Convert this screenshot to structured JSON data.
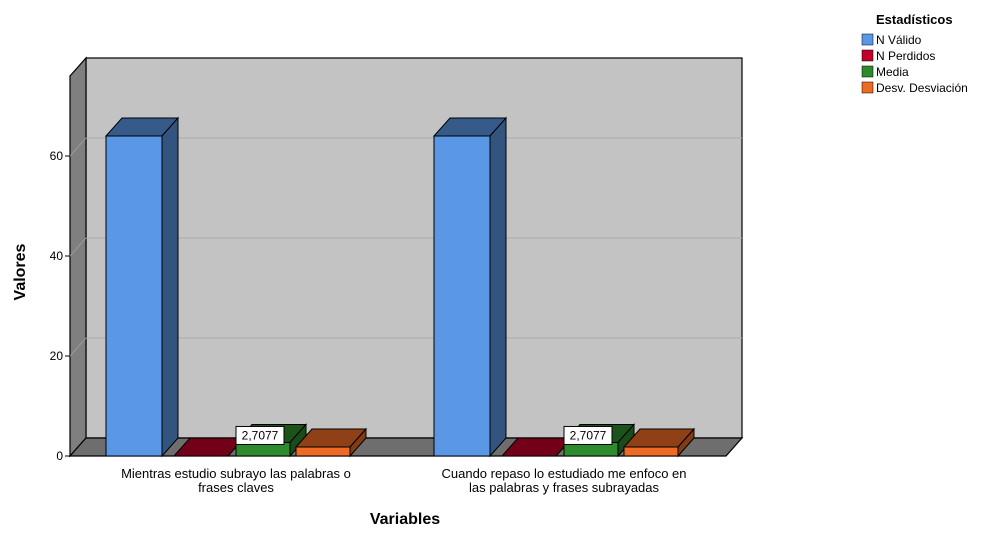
{
  "chart_data": {
    "type": "bar",
    "title": "",
    "xlabel": "Variables",
    "ylabel": "Valores",
    "ylim": [
      0,
      76
    ],
    "yticks": [
      0,
      20,
      40,
      60
    ],
    "grid": true,
    "legend_position": "top-right",
    "legend_title": "Estadísticos",
    "categories": [
      [
        "Mientras estudio subrayo las palabras o",
        "frases claves"
      ],
      [
        "Cuando repaso lo estudiado me enfoco en",
        "las palabras y frases subrayadas"
      ]
    ],
    "series": [
      {
        "name": "N Válido",
        "color": "#5a98e6",
        "values": [
          64,
          64
        ]
      },
      {
        "name": "N Perdidos",
        "color": "#c0002a",
        "values": [
          0,
          0
        ]
      },
      {
        "name": "Media",
        "color": "#2d8a2d",
        "values": [
          2.7077,
          2.7077
        ],
        "labels": [
          "2,7077",
          "2,7077"
        ]
      },
      {
        "name": "Desv. Desviación",
        "color": "#ee6b26",
        "values": [
          1.8,
          1.8
        ]
      }
    ]
  }
}
